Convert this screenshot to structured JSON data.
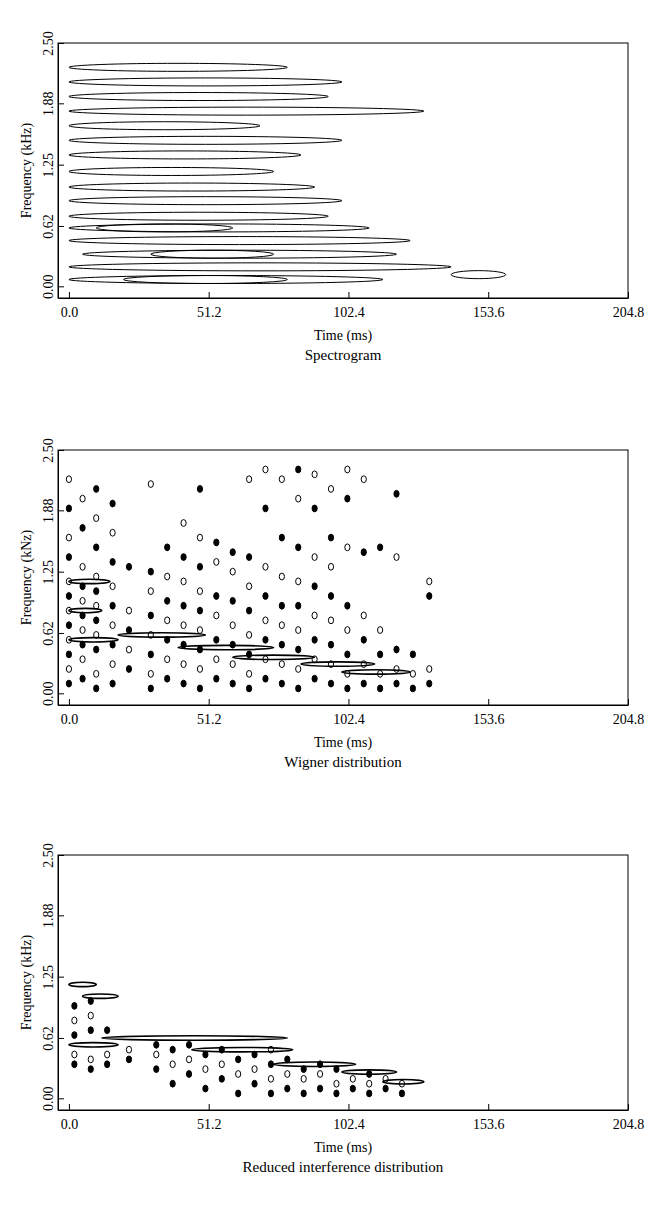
{
  "chart_data": [
    {
      "type": "contour",
      "title": "Spectrogram",
      "xlabel": "Time (ms)",
      "ylabel": "Frequency (kHz)",
      "xlim": [
        -4,
        204.8
      ],
      "ylim": [
        -0.12,
        2.5
      ],
      "xticks": [
        {
          "value": 0,
          "label": "0.0"
        },
        51.2,
        102.4,
        153.6,
        204.8
      ],
      "yticks": [
        {
          "value": 0,
          "label": "0.00"
        },
        0.62,
        1.25,
        1.88,
        {
          "value": 2.5,
          "label": "2.50"
        }
      ],
      "ridges": [
        [
          0,
          115,
          0.07
        ],
        [
          20,
          80,
          0.07
        ],
        [
          0,
          140,
          0.2
        ],
        [
          5,
          120,
          0.33
        ],
        [
          30,
          75,
          0.33
        ],
        [
          0,
          125,
          0.47
        ],
        [
          0,
          110,
          0.6
        ],
        [
          10,
          60,
          0.6
        ],
        [
          0,
          95,
          0.72
        ],
        [
          0,
          100,
          0.88
        ],
        [
          0,
          90,
          1.02
        ],
        [
          0,
          75,
          1.18
        ],
        [
          0,
          85,
          1.35
        ],
        [
          0,
          100,
          1.5
        ],
        [
          0,
          70,
          1.65
        ],
        [
          0,
          130,
          1.8
        ],
        [
          0,
          95,
          1.95
        ],
        [
          0,
          100,
          2.1
        ],
        [
          0,
          80,
          2.25
        ],
        [
          140,
          160,
          0.12
        ]
      ]
    },
    {
      "type": "contour",
      "title": "Wigner distribution",
      "xlabel": "Time (ms)",
      "ylabel": "Frequency (kNz)",
      "xlim": [
        -4,
        204.8
      ],
      "ylim": [
        -0.12,
        2.5
      ],
      "xticks": [
        {
          "value": 0,
          "label": "0.0"
        },
        51.2,
        102.4,
        153.6,
        204.8
      ],
      "yticks": [
        {
          "value": 0,
          "label": "0.00"
        },
        0.62,
        1.25,
        1.88,
        {
          "value": 2.5,
          "label": "2.50"
        }
      ],
      "ridges": [
        [
          0,
          15,
          1.15
        ],
        [
          0,
          18,
          0.55
        ],
        [
          0,
          12,
          0.85
        ],
        [
          18,
          50,
          0.6
        ],
        [
          40,
          75,
          0.47
        ],
        [
          60,
          90,
          0.37
        ],
        [
          85,
          112,
          0.3
        ],
        [
          100,
          125,
          0.22
        ]
      ],
      "columns": [
        {
          "t": 0,
          "f": [
            0.1,
            0.25,
            0.4,
            0.55,
            0.7,
            0.85,
            1.0,
            1.15,
            1.4,
            1.6,
            1.9,
            2.2
          ]
        },
        {
          "t": 5,
          "f": [
            0.15,
            0.35,
            0.5,
            0.65,
            0.8,
            0.95,
            1.1,
            1.3,
            1.7,
            2.0
          ]
        },
        {
          "t": 10,
          "f": [
            0.05,
            0.2,
            0.45,
            0.6,
            0.75,
            0.9,
            1.05,
            1.2,
            1.5,
            1.8,
            2.1
          ]
        },
        {
          "t": 16,
          "f": [
            0.1,
            0.3,
            0.5,
            0.7,
            0.9,
            1.1,
            1.35,
            1.65,
            1.95
          ]
        },
        {
          "t": 22,
          "f": [
            0.25,
            0.45,
            0.65,
            0.85,
            1.3
          ]
        },
        {
          "t": 30,
          "f": [
            0.05,
            0.2,
            0.4,
            0.6,
            0.8,
            1.05,
            1.25,
            2.15
          ]
        },
        {
          "t": 36,
          "f": [
            0.15,
            0.35,
            0.55,
            0.75,
            0.95,
            1.2,
            1.5
          ]
        },
        {
          "t": 42,
          "f": [
            0.1,
            0.3,
            0.5,
            0.7,
            0.9,
            1.15,
            1.4,
            1.75
          ]
        },
        {
          "t": 48,
          "f": [
            0.05,
            0.25,
            0.45,
            0.65,
            0.85,
            1.05,
            1.3,
            1.6,
            2.1
          ]
        },
        {
          "t": 54,
          "f": [
            0.15,
            0.35,
            0.55,
            0.8,
            1.0,
            1.35,
            1.55
          ]
        },
        {
          "t": 60,
          "f": [
            0.1,
            0.3,
            0.5,
            0.7,
            0.95,
            1.25,
            1.45
          ]
        },
        {
          "t": 66,
          "f": [
            0.05,
            0.2,
            0.4,
            0.6,
            0.85,
            1.1,
            1.4,
            2.2
          ]
        },
        {
          "t": 72,
          "f": [
            0.15,
            0.35,
            0.55,
            0.75,
            1.0,
            1.3,
            1.9,
            2.3
          ]
        },
        {
          "t": 78,
          "f": [
            0.1,
            0.3,
            0.5,
            0.7,
            0.9,
            1.2,
            1.6,
            2.2
          ]
        },
        {
          "t": 84,
          "f": [
            0.05,
            0.25,
            0.45,
            0.65,
            0.9,
            1.15,
            1.5,
            2.0,
            2.3
          ]
        },
        {
          "t": 90,
          "f": [
            0.15,
            0.35,
            0.55,
            0.8,
            1.1,
            1.4,
            1.9,
            2.25
          ]
        },
        {
          "t": 96,
          "f": [
            0.1,
            0.3,
            0.5,
            0.75,
            1.0,
            1.3,
            1.6,
            2.1
          ]
        },
        {
          "t": 102,
          "f": [
            0.05,
            0.2,
            0.4,
            0.65,
            0.9,
            1.5,
            2.0,
            2.3
          ]
        },
        {
          "t": 108,
          "f": [
            0.1,
            0.3,
            0.55,
            0.8,
            1.45,
            2.2
          ]
        },
        {
          "t": 114,
          "f": [
            0.05,
            0.2,
            0.4,
            0.65,
            1.5
          ]
        },
        {
          "t": 120,
          "f": [
            0.1,
            0.25,
            0.45,
            1.4,
            2.05
          ]
        },
        {
          "t": 126,
          "f": [
            0.05,
            0.2,
            0.4
          ]
        },
        {
          "t": 132,
          "f": [
            0.1,
            0.25,
            1.0,
            1.15
          ]
        }
      ]
    },
    {
      "type": "contour",
      "title": "Reduced interference distribution",
      "xlabel": "Time (ms)",
      "ylabel": "Frequency (kHz)",
      "xlim": [
        -4,
        204.8
      ],
      "ylim": [
        -0.12,
        2.5
      ],
      "xticks": [
        {
          "value": 0,
          "label": "0.0"
        },
        51.2,
        102.4,
        153.6,
        204.8
      ],
      "yticks": [
        {
          "value": 0,
          "label": "0.00"
        },
        0.62,
        1.25,
        1.88,
        {
          "value": 2.5,
          "label": "2.50"
        }
      ],
      "ridges": [
        [
          0,
          10,
          1.17
        ],
        [
          5,
          18,
          1.05
        ],
        [
          0,
          18,
          0.55
        ],
        [
          12,
          80,
          0.62
        ],
        [
          45,
          82,
          0.5
        ],
        [
          75,
          105,
          0.35
        ],
        [
          100,
          120,
          0.27
        ],
        [
          115,
          130,
          0.17
        ]
      ],
      "columns": [
        {
          "t": 2,
          "f": [
            0.35,
            0.45,
            0.65,
            0.8,
            0.95
          ]
        },
        {
          "t": 8,
          "f": [
            0.3,
            0.4,
            0.7,
            0.85,
            1.0
          ]
        },
        {
          "t": 14,
          "f": [
            0.35,
            0.45,
            0.7
          ]
        },
        {
          "t": 22,
          "f": [
            0.4,
            0.5
          ]
        },
        {
          "t": 32,
          "f": [
            0.3,
            0.45,
            0.55
          ]
        },
        {
          "t": 38,
          "f": [
            0.15,
            0.35,
            0.5
          ]
        },
        {
          "t": 44,
          "f": [
            0.25,
            0.4,
            0.55
          ]
        },
        {
          "t": 50,
          "f": [
            0.1,
            0.3,
            0.45
          ]
        },
        {
          "t": 56,
          "f": [
            0.2,
            0.35,
            0.5
          ]
        },
        {
          "t": 62,
          "f": [
            0.05,
            0.25,
            0.4
          ]
        },
        {
          "t": 68,
          "f": [
            0.15,
            0.3,
            0.45
          ]
        },
        {
          "t": 74,
          "f": [
            0.05,
            0.2,
            0.35,
            0.5
          ]
        },
        {
          "t": 80,
          "f": [
            0.1,
            0.25,
            0.4
          ]
        },
        {
          "t": 86,
          "f": [
            0.05,
            0.2,
            0.3
          ]
        },
        {
          "t": 92,
          "f": [
            0.1,
            0.25,
            0.35
          ]
        },
        {
          "t": 98,
          "f": [
            0.05,
            0.15,
            0.3
          ]
        },
        {
          "t": 104,
          "f": [
            0.1,
            0.2
          ]
        },
        {
          "t": 110,
          "f": [
            0.05,
            0.15,
            0.25
          ]
        },
        {
          "t": 116,
          "f": [
            0.1,
            0.2
          ]
        },
        {
          "t": 122,
          "f": [
            0.05,
            0.15
          ]
        }
      ]
    }
  ]
}
